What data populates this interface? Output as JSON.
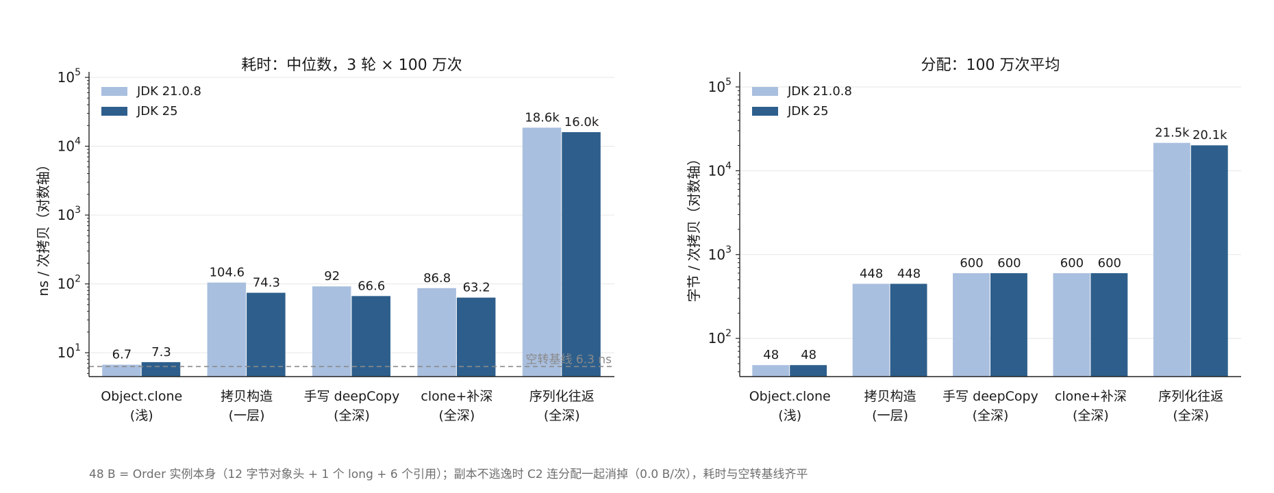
{
  "footnote": "48 B = Order 实例本身（12 字节对象头 + 1 个 long + 6 个引用）；副本不逃逸时 C2 连分配一起消掉（0.0 B/次），耗时与空转基线齐平",
  "colors": {
    "jdk21": "#a9bfdf",
    "jdk25": "#2e5f8c",
    "baseline": "#8a8a8a",
    "grid": "#e6e6e6",
    "axis": "#222222"
  },
  "chart_data": [
    {
      "type": "bar",
      "title": "耗时：中位数，3 轮 × 100 万次",
      "ylabel": "ns / 次拷贝（对数轴）",
      "xlabel": "",
      "scale": "log",
      "ylim": [
        4.5,
        100000
      ],
      "yticks": [
        10,
        100,
        1000,
        10000,
        100000
      ],
      "grid": "y",
      "legend": "top-left",
      "categories": [
        "Object.clone\n(浅)",
        "拷贝构造\n(一层)",
        "手写 deepCopy\n(全深)",
        "clone+补深\n(全深)",
        "序列化往返\n(全深)"
      ],
      "series": [
        {
          "name": "JDK 21.0.8",
          "values": [
            6.7,
            104.6,
            92,
            86.8,
            18600
          ],
          "labels": [
            "6.7",
            "104.6",
            "92",
            "86.8",
            "18.6k"
          ]
        },
        {
          "name": "JDK 25",
          "values": [
            7.3,
            74.3,
            66.6,
            63.2,
            16000
          ],
          "labels": [
            "7.3",
            "74.3",
            "66.6",
            "63.2",
            "16.0k"
          ]
        }
      ],
      "baseline": {
        "value": 6.3,
        "label": "空转基线 6.3 ns"
      }
    },
    {
      "type": "bar",
      "title": "分配：100 万次平均",
      "ylabel": "字节 / 次拷贝（对数轴）",
      "xlabel": "",
      "scale": "log",
      "ylim": [
        35,
        130000
      ],
      "yticks": [
        100,
        1000,
        10000,
        100000
      ],
      "grid": "y",
      "legend": "top-left",
      "categories": [
        "Object.clone\n(浅)",
        "拷贝构造\n(一层)",
        "手写 deepCopy\n(全深)",
        "clone+补深\n(全深)",
        "序列化往返\n(全深)"
      ],
      "series": [
        {
          "name": "JDK 21.0.8",
          "values": [
            48,
            448,
            600,
            600,
            21500
          ],
          "labels": [
            "48",
            "448",
            "600",
            "600",
            "21.5k"
          ]
        },
        {
          "name": "JDK 25",
          "values": [
            48,
            448,
            600,
            600,
            20100
          ],
          "labels": [
            "48",
            "448",
            "600",
            "600",
            "20.1k"
          ]
        }
      ]
    }
  ]
}
